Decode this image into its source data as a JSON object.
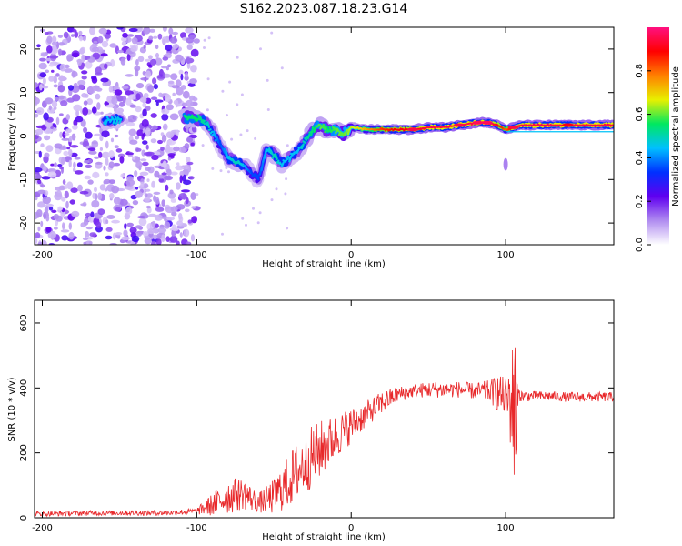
{
  "figure_title": "S162.2023.087.18.23.G14",
  "chart_data": [
    {
      "type": "heatmap",
      "name": "spectrogram",
      "xlabel": "Height of straight line (km)",
      "ylabel": "Frequency (Hz)",
      "xlim": [
        -205,
        170
      ],
      "ylim": [
        -25,
        25
      ],
      "xticks": [
        -200,
        -100,
        0,
        100
      ],
      "yticks": [
        -20,
        -10,
        0,
        10,
        20
      ],
      "colorbar": {
        "label": "Normalized spectral amplitude",
        "range": [
          0,
          1
        ],
        "ticks": [
          0.0,
          0.2,
          0.4,
          0.6,
          0.8
        ],
        "colormap": [
          "#ffffff",
          "#b08cf0",
          "#6000f0",
          "#0030ff",
          "#00c0ff",
          "#00e860",
          "#e8f000",
          "#ff8000",
          "#ff0000",
          "#ff1080"
        ]
      },
      "ridge": {
        "x": [
          -160,
          -155,
          -105,
          -100,
          -95,
          -90,
          -85,
          -80,
          -75,
          -70,
          -65,
          -60,
          -55,
          -50,
          -45,
          -40,
          -35,
          -30,
          -25,
          -20,
          -15,
          -10,
          -5,
          0,
          10,
          20,
          30,
          40,
          50,
          60,
          70,
          80,
          85,
          90,
          95,
          100,
          105,
          110,
          120,
          130,
          140,
          150,
          160,
          170
        ],
        "y": [
          3.5,
          3.8,
          4.2,
          4.0,
          3.5,
          1.0,
          -2.0,
          -5.0,
          -6.0,
          -6.5,
          -8.5,
          -10.0,
          -3.0,
          -4.5,
          -6.5,
          -5.0,
          -3.5,
          -1.5,
          1.5,
          2.5,
          1.0,
          1.5,
          0.5,
          2.0,
          1.5,
          1.5,
          1.5,
          1.5,
          2.0,
          2.0,
          2.5,
          3.0,
          3.2,
          3.0,
          2.5,
          1.5,
          2.0,
          2.5,
          2.5,
          2.5,
          2.5,
          2.5,
          2.5,
          2.5
        ],
        "amplitude": [
          0.45,
          0.45,
          0.55,
          0.55,
          0.5,
          0.45,
          0.35,
          0.45,
          0.5,
          0.45,
          0.35,
          0.35,
          0.45,
          0.5,
          0.45,
          0.45,
          0.45,
          0.5,
          0.55,
          0.6,
          0.55,
          0.6,
          0.6,
          0.65,
          0.75,
          0.85,
          0.9,
          0.9,
          0.95,
          0.95,
          0.95,
          0.95,
          0.95,
          0.95,
          0.9,
          0.8,
          0.95,
          0.95,
          0.95,
          0.95,
          0.95,
          0.95,
          0.95,
          0.95
        ]
      }
    },
    {
      "type": "line",
      "name": "snr",
      "xlabel": "Height of straight line (km)",
      "ylabel": "SNR (10 * v/v)",
      "xlim": [
        -205,
        170
      ],
      "ylim": [
        0,
        670
      ],
      "xticks": [
        -200,
        -100,
        0,
        100
      ],
      "yticks": [
        0,
        200,
        400,
        600
      ],
      "series": [
        {
          "name": "SNR",
          "color": "#e8282a",
          "x": [
            -205,
            -180,
            -150,
            -120,
            -100,
            -90,
            -80,
            -70,
            -60,
            -50,
            -40,
            -30,
            -20,
            -10,
            0,
            10,
            20,
            30,
            40,
            50,
            60,
            70,
            80,
            90,
            95,
            100,
            104,
            106,
            108,
            110,
            120,
            130,
            140,
            150,
            160,
            170
          ],
          "y": [
            12,
            14,
            15,
            15,
            20,
            40,
            65,
            75,
            45,
            65,
            115,
            170,
            210,
            250,
            285,
            320,
            355,
            380,
            390,
            395,
            395,
            395,
            390,
            390,
            385,
            370,
            360,
            300,
            380,
            375,
            375,
            375,
            372,
            372,
            372,
            372
          ],
          "noise_amplitude": [
            8,
            8,
            8,
            8,
            10,
            35,
            55,
            50,
            30,
            55,
            85,
            100,
            90,
            70,
            55,
            40,
            35,
            25,
            20,
            25,
            25,
            25,
            25,
            35,
            60,
            60,
            170,
            290,
            20,
            18,
            15,
            15,
            15,
            15,
            15,
            15
          ]
        }
      ]
    }
  ]
}
